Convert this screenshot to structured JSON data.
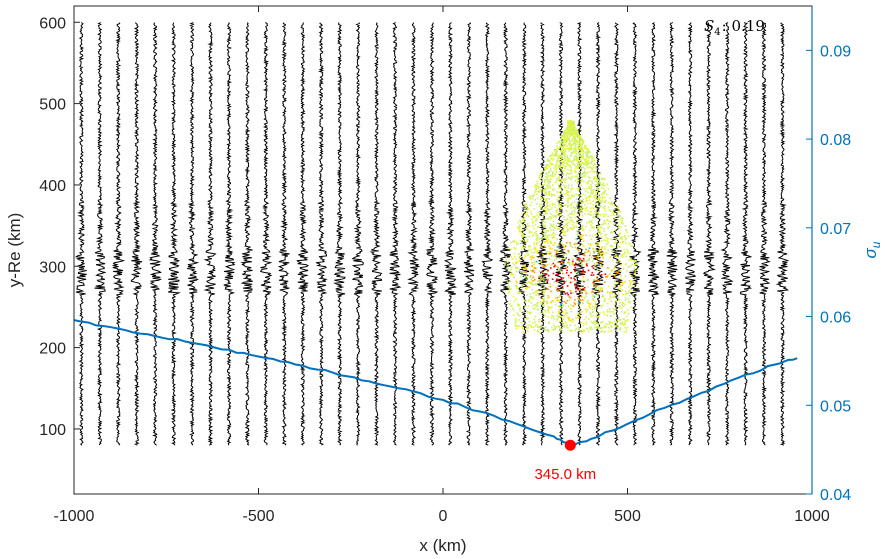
{
  "chart_data": {
    "type": "line",
    "colors": {
      "axis": "#262626",
      "right_axis": "#0072BD",
      "traces": "#000000",
      "sigma_line": "#0072BD",
      "min_marker": "#FF0000",
      "scatter_palette": [
        "#C8F070",
        "#E6F53A",
        "#FFE000",
        "#FF9900",
        "#FF0000",
        "#00D0E0"
      ]
    },
    "xlabel": "x (km)",
    "ylabel": "y-Re (km)",
    "y2label": "σ_u",
    "xlim": [
      -1000,
      1000
    ],
    "ylim": [
      20,
      620
    ],
    "y2lim": [
      0.04,
      0.095
    ],
    "xticks": [
      "-1000",
      "-500",
      "0",
      "500",
      "1000"
    ],
    "yticks": [
      "100",
      "200",
      "300",
      "400",
      "500",
      "600"
    ],
    "y2ticks": [
      "0.04",
      "0.05",
      "0.06",
      "0.07",
      "0.08",
      "0.09"
    ],
    "annotation": {
      "symbol": "S",
      "subscript": "4",
      "value": ": 0.19"
    },
    "min_label": "345.0 km",
    "minimum": {
      "x": 345,
      "sigma": 0.0455
    },
    "traces": {
      "x_start": -980,
      "x_step": 50,
      "count": 39,
      "y_range": [
        80,
        600
      ],
      "dense_band": [
        265,
        320
      ]
    },
    "sigma_u": {
      "x": [
        -1000,
        -900,
        -800,
        -700,
        -600,
        -500,
        -400,
        -300,
        -200,
        -100,
        0,
        100,
        200,
        300,
        345,
        400,
        500,
        600,
        700,
        800,
        900,
        960
      ],
      "y": [
        0.0596,
        0.0588,
        0.058,
        0.0572,
        0.0563,
        0.0555,
        0.0546,
        0.0537,
        0.0527,
        0.0518,
        0.0506,
        0.0493,
        0.0479,
        0.0465,
        0.0455,
        0.0462,
        0.0479,
        0.0497,
        0.0514,
        0.0531,
        0.0546,
        0.0553
      ]
    },
    "cloud": {
      "x_range": [
        170,
        520
      ],
      "y_range": [
        220,
        480
      ]
    }
  }
}
